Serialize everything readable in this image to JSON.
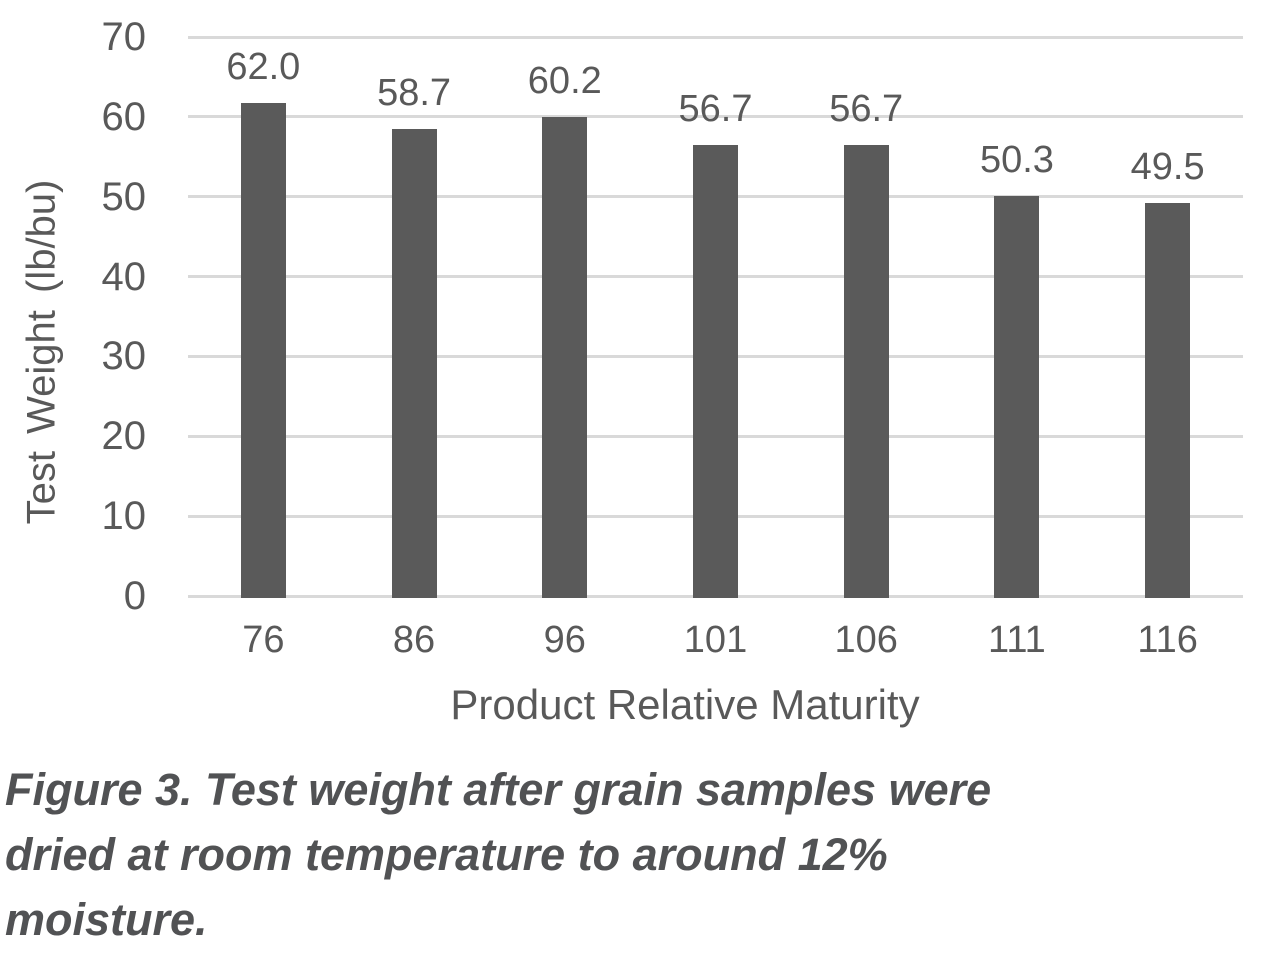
{
  "figure": {
    "caption_lines": [
      "Figure 3. Test weight after grain samples were",
      "dried at room temperature to around 12%",
      "moisture."
    ]
  },
  "chart_data": {
    "type": "bar",
    "title": "",
    "categories": [
      "76",
      "86",
      "96",
      "101",
      "106",
      "111",
      "116"
    ],
    "values": [
      62.0,
      58.7,
      60.2,
      56.7,
      56.7,
      50.3,
      49.5
    ],
    "value_labels": [
      "62.0",
      "58.7",
      "60.2",
      "56.7",
      "56.7",
      "50.3",
      "49.5"
    ],
    "xlabel": "Product Relative Maturity",
    "ylabel": "Test Weight (lb/bu)",
    "ylim": [
      0,
      70
    ],
    "yticks": [
      0,
      10,
      20,
      30,
      40,
      50,
      60,
      70
    ],
    "grid": "horizontal",
    "legend": "none",
    "bar_color": "#5a5a5a",
    "gridline_color": "#d9d9d9",
    "text_color": "#595959",
    "caption_color": "#515254"
  }
}
